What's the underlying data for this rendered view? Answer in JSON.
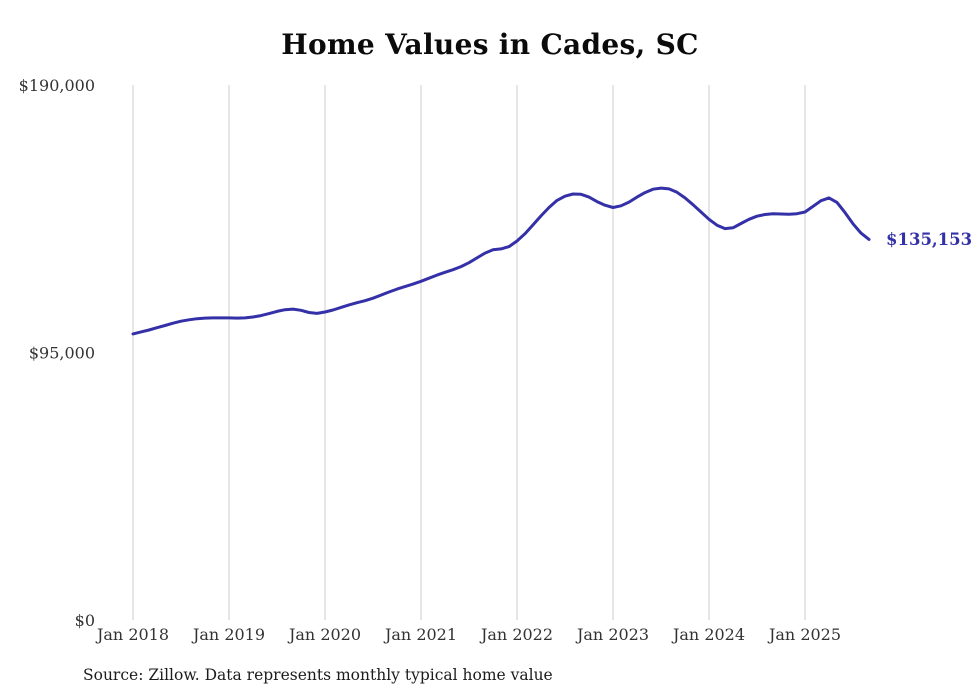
{
  "page": {
    "source_note": "Source: Zillow. Data represents monthly typical home value"
  },
  "chart_data": {
    "type": "line",
    "title": "Home Values in Cades, SC",
    "series_name": "Typical home value",
    "unit": "USD",
    "frequency": "monthly",
    "start_month": "Jan 2018",
    "end_month": "Sep 2025",
    "xlabel": "",
    "ylabel": "",
    "ylim": [
      0,
      190000
    ],
    "grid": "vertical-only",
    "legend": "none",
    "line_color": "#3431A8",
    "gridline_color": "#cccccc",
    "end_label": "$135,153",
    "end_value": 135153,
    "y_ticks": [
      {
        "value": 190000,
        "label": "$190,000"
      },
      {
        "value": 95000,
        "label": "$95,000"
      },
      {
        "value": 0,
        "label": "$0"
      }
    ],
    "x_ticks": [
      {
        "month_index": 0,
        "label": "Jan 2018"
      },
      {
        "month_index": 12,
        "label": "Jan 2019"
      },
      {
        "month_index": 24,
        "label": "Jan 2020"
      },
      {
        "month_index": 36,
        "label": "Jan 2021"
      },
      {
        "month_index": 48,
        "label": "Jan 2022"
      },
      {
        "month_index": 60,
        "label": "Jan 2023"
      },
      {
        "month_index": 72,
        "label": "Jan 2024"
      },
      {
        "month_index": 84,
        "label": "Jan 2025"
      }
    ],
    "values": [
      101600,
      102300,
      103000,
      103800,
      104600,
      105400,
      106100,
      106600,
      107000,
      107200,
      107300,
      107300,
      107300,
      107200,
      107300,
      107600,
      108100,
      108800,
      109600,
      110200,
      110400,
      110000,
      109200,
      108900,
      109400,
      110100,
      111000,
      111900,
      112700,
      113400,
      114300,
      115400,
      116500,
      117500,
      118400,
      119300,
      120300,
      121400,
      122500,
      123500,
      124400,
      125500,
      126900,
      128600,
      130300,
      131500,
      131800,
      132600,
      134600,
      137200,
      140300,
      143500,
      146500,
      149000,
      150500,
      151300,
      151200,
      150200,
      148600,
      147300,
      146500,
      147100,
      148400,
      150200,
      151800,
      153000,
      153400,
      153100,
      151900,
      149900,
      147500,
      144900,
      142300,
      140200,
      139000,
      139300,
      140800,
      142300,
      143400,
      144000,
      144300,
      144200,
      144100,
      144300,
      144900,
      146900,
      148900,
      149900,
      148300,
      144700,
      140700,
      137400,
      135153
    ]
  }
}
